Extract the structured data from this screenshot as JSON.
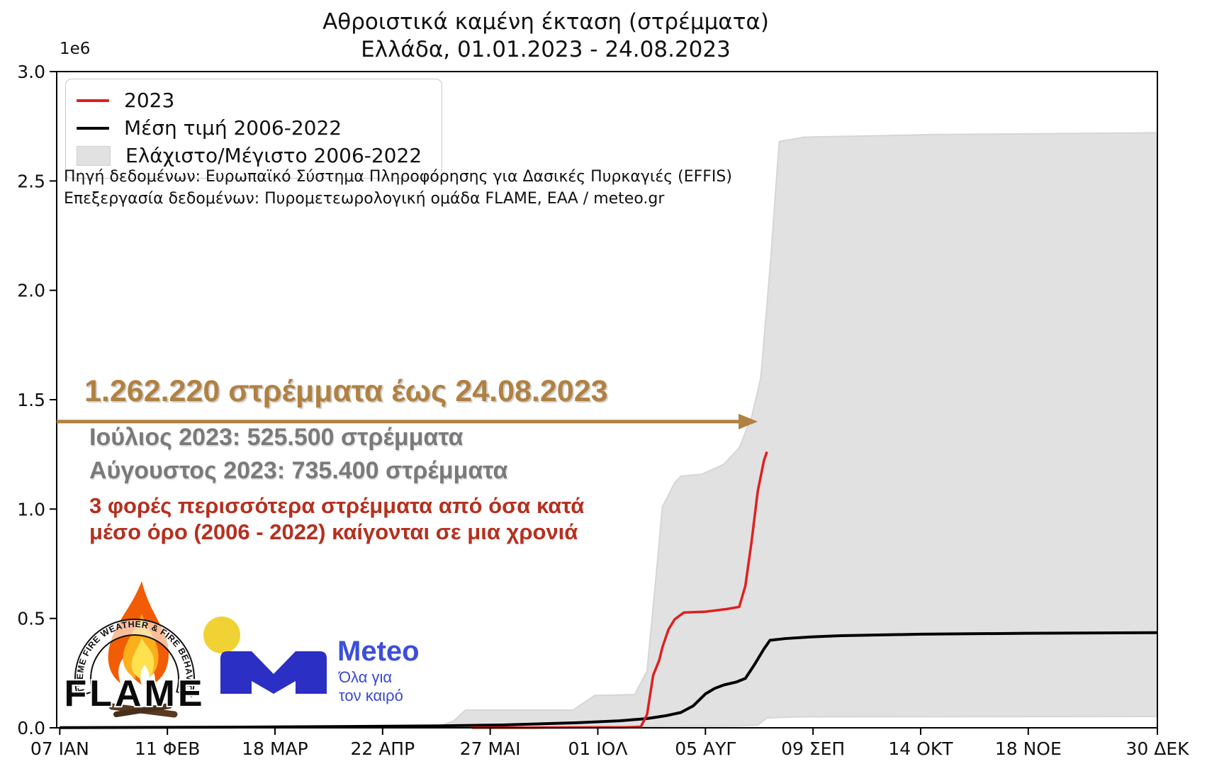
{
  "title": {
    "line1": "Αθροιστικά καμένη έκταση (στρέμματα)",
    "line2": "Ελλάδα, 01.01.2023 - 24.08.2023"
  },
  "axis": {
    "offset_label": "1e6"
  },
  "legend": {
    "items": [
      {
        "label": "2023",
        "color": "#e01f1f",
        "swatch": "line"
      },
      {
        "label": "Μέση τιμή 2006-2022",
        "color": "#000000",
        "swatch": "line"
      },
      {
        "label": "Ελάχιστο/Μέγιστο 2006-2022",
        "color": "#e1e1e1",
        "swatch": "patch"
      }
    ]
  },
  "source": {
    "line1": "Πηγή δεδομένων: Ευρωπαϊκό Σύστημα Πληροφόρησης για Δασικές Πυρκαγιές (EFFIS)",
    "line2": "Επεξεργασία δεδομένων: Πυρομετεωρολογική ομάδα FLAME, ΕΑΑ / meteo.gr"
  },
  "annotations": {
    "headline": "1.262.220 στρέμματα έως 24.08.2023",
    "headline_color": "#b08142",
    "july": "Ιούλιος 2023: 525.500 στρέμματα",
    "august": "Αύγουστος 2023: 735.400 στρέμματα",
    "monthly_color": "#7a7a7a",
    "comparison_line1": "3 φορές περισσότερα στρέμματα από όσα κατά",
    "comparison_line2": "μέσο όρο (2006 - 2022) καίγονται σε μια χρονιά",
    "comparison_color": "#b5301f"
  },
  "logos": {
    "flame": {
      "arc_text": "EXTREME FIRE WEATHER & FIRE BEHAVIOUR",
      "name": "FLAME"
    },
    "meteo": {
      "name": "Meteo",
      "tagline_line1": "Όλα για",
      "tagline_line2": "τον καιρό",
      "blue": "#2b2fc4",
      "yellow": "#f0d235"
    }
  },
  "chart_data": {
    "type": "line",
    "title": "Αθροιστικά καμένη έκταση (στρέμματα) — Ελλάδα, 01.01.2023 - 24.08.2023",
    "x_unit": "day_of_year_2023",
    "y_unit": "thousand_stremmata",
    "x_domain": [
      5,
      363
    ],
    "y_max_thousand_stremmata": 3000,
    "grid": false,
    "legend_position": "upper left",
    "x_ticks": [
      {
        "day": 6,
        "label": "07 ΙΑΝ"
      },
      {
        "day": 41,
        "label": "11 ΦΕΒ"
      },
      {
        "day": 76,
        "label": "18 ΜΑΡ"
      },
      {
        "day": 111,
        "label": "22 ΑΠΡ"
      },
      {
        "day": 146,
        "label": "27 ΜΑΙ"
      },
      {
        "day": 181,
        "label": "01 ΙΟΛ"
      },
      {
        "day": 216,
        "label": "05 ΑΥΓ"
      },
      {
        "day": 251,
        "label": "09 ΣΕΠ"
      },
      {
        "day": 286,
        "label": "14 ΟΚΤ"
      },
      {
        "day": 321,
        "label": "18 ΝΟΕ"
      },
      {
        "day": 363,
        "label": "30 ΔΕΚ"
      }
    ],
    "y_ticks": [
      {
        "value": 0,
        "label": "0.0"
      },
      {
        "value": 500,
        "label": "0.5"
      },
      {
        "value": 1000,
        "label": "1.0"
      },
      {
        "value": 1500,
        "label": "1.5"
      },
      {
        "value": 2000,
        "label": "2.0"
      },
      {
        "value": 2500,
        "label": "2.5"
      },
      {
        "value": 3000,
        "label": "3.0"
      }
    ],
    "series": [
      {
        "name": "2023",
        "color": "#e01f1f",
        "stroke_width": 3.5,
        "points": [
          [
            140,
            1
          ],
          [
            160,
            1
          ],
          [
            181,
            2
          ],
          [
            190,
            2
          ],
          [
            195,
            5
          ],
          [
            197,
            60
          ],
          [
            199,
            240
          ],
          [
            201,
            310
          ],
          [
            202,
            368
          ],
          [
            204,
            450
          ],
          [
            206,
            496
          ],
          [
            209,
            527
          ],
          [
            216,
            531
          ],
          [
            223,
            543
          ],
          [
            227,
            553
          ],
          [
            229,
            650
          ],
          [
            231,
            850
          ],
          [
            233,
            1080
          ],
          [
            235,
            1220
          ],
          [
            236,
            1262
          ]
        ]
      },
      {
        "name": "Μέση τιμή 2006-2022",
        "color": "#000000",
        "stroke_width": 4,
        "points": [
          [
            6,
            1
          ],
          [
            60,
            3
          ],
          [
            100,
            6
          ],
          [
            130,
            9
          ],
          [
            150,
            13
          ],
          [
            174,
            23
          ],
          [
            188,
            32
          ],
          [
            197,
            42
          ],
          [
            203,
            55
          ],
          [
            208,
            70
          ],
          [
            212,
            100
          ],
          [
            216,
            155
          ],
          [
            219,
            180
          ],
          [
            222,
            196
          ],
          [
            226,
            209
          ],
          [
            229,
            226
          ],
          [
            232,
            290
          ],
          [
            235,
            360
          ],
          [
            237,
            400
          ],
          [
            242,
            408
          ],
          [
            251,
            416
          ],
          [
            260,
            421
          ],
          [
            286,
            428
          ],
          [
            320,
            432
          ],
          [
            363,
            435
          ]
        ]
      }
    ],
    "band": {
      "name": "Ελάχιστο/Μέγιστο 2006-2022",
      "fill": "#e1e1e1",
      "edge": "#d6d6d6",
      "max": [
        [
          6,
          1
        ],
        [
          100,
          1
        ],
        [
          128,
          2
        ],
        [
          134,
          30
        ],
        [
          138,
          81
        ],
        [
          173,
          81
        ],
        [
          180,
          148
        ],
        [
          193,
          152
        ],
        [
          197,
          260
        ],
        [
          200,
          700
        ],
        [
          202,
          1010
        ],
        [
          206,
          1120
        ],
        [
          208,
          1150
        ],
        [
          215,
          1160
        ],
        [
          222,
          1205
        ],
        [
          227,
          1280
        ],
        [
          231,
          1420
        ],
        [
          234,
          1600
        ],
        [
          237,
          2100
        ],
        [
          240,
          2680
        ],
        [
          248,
          2700
        ],
        [
          290,
          2712
        ],
        [
          363,
          2720
        ]
      ],
      "min": [
        [
          6,
          0
        ],
        [
          130,
          0
        ],
        [
          140,
          3
        ],
        [
          190,
          6
        ],
        [
          225,
          8
        ],
        [
          233,
          12
        ],
        [
          236,
          45
        ],
        [
          245,
          50
        ],
        [
          363,
          52
        ]
      ]
    },
    "arrow": {
      "value": 1400,
      "from_day": 5,
      "to_day": 233,
      "color": "#b08142"
    },
    "key_values": {
      "total_2023_stremmata_until_2023_08_24": 1262220,
      "july_2023_stremmata": 525500,
      "august_2023_stremmata": 735400,
      "ratio_vs_mean_annual": 3
    }
  }
}
